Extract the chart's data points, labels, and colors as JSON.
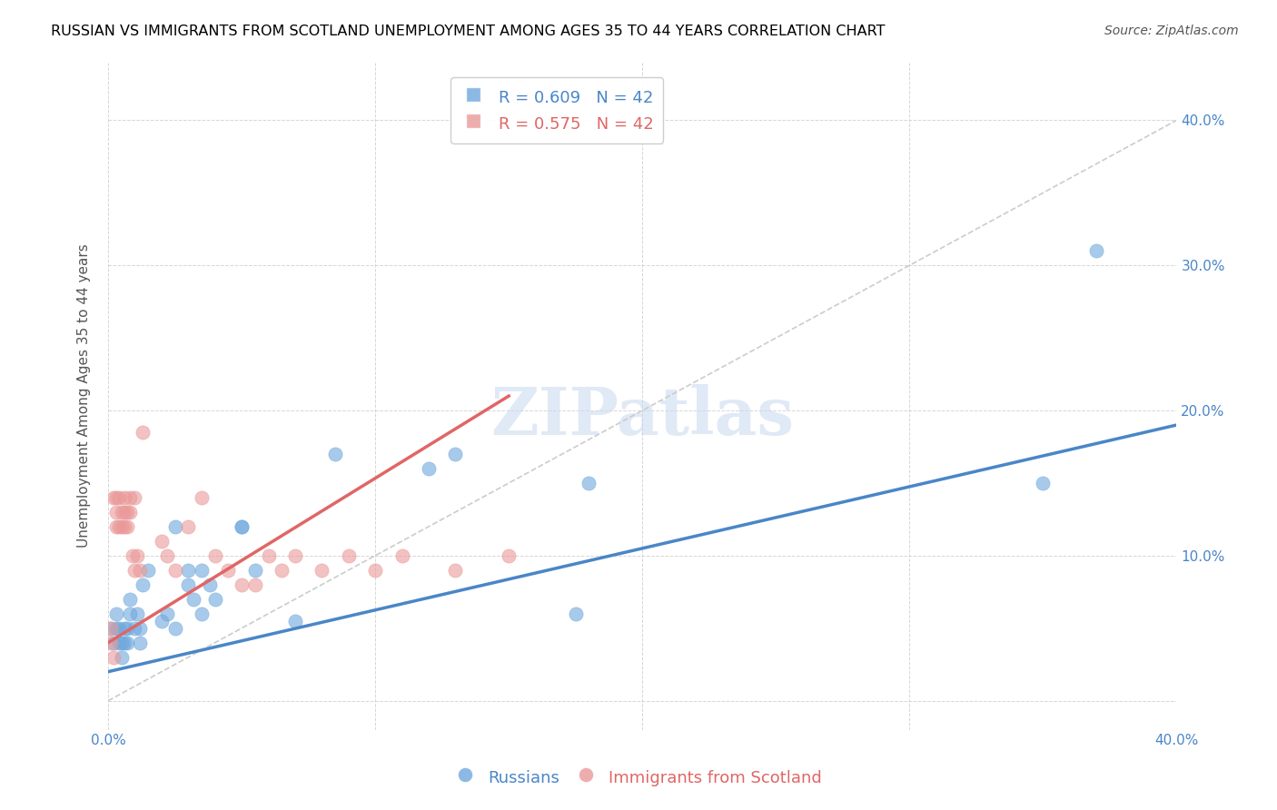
{
  "title": "RUSSIAN VS IMMIGRANTS FROM SCOTLAND UNEMPLOYMENT AMONG AGES 35 TO 44 YEARS CORRELATION CHART",
  "source": "Source: ZipAtlas.com",
  "xlabel": "",
  "ylabel": "Unemployment Among Ages 35 to 44 years",
  "xlim": [
    0.0,
    0.4
  ],
  "ylim": [
    -0.02,
    0.44
  ],
  "x_ticks": [
    0.0,
    0.05,
    0.1,
    0.15,
    0.2,
    0.25,
    0.3,
    0.35,
    0.4
  ],
  "y_ticks": [
    0.0,
    0.1,
    0.2,
    0.3,
    0.4
  ],
  "x_tick_labels": [
    "0.0%",
    "",
    "",
    "",
    "",
    "",
    "",
    "",
    "40.0%"
  ],
  "y_tick_labels": [
    "",
    "10.0%",
    "20.0%",
    "30.0%",
    "40.0%"
  ],
  "blue_color": "#6fa8dc",
  "pink_color": "#ea9999",
  "blue_line_color": "#4a86c8",
  "pink_line_color": "#e06666",
  "diagonal_color": "#cccccc",
  "legend_blue_R": "0.609",
  "legend_blue_N": "42",
  "legend_pink_R": "0.575",
  "legend_pink_N": "42",
  "legend_label_blue": "Russians",
  "legend_label_pink": "Immigrants from Scotland",
  "watermark": "ZIPatlas",
  "russians_x": [
    0.001,
    0.002,
    0.003,
    0.003,
    0.004,
    0.004,
    0.005,
    0.005,
    0.006,
    0.006,
    0.007,
    0.007,
    0.008,
    0.008,
    0.01,
    0.011,
    0.012,
    0.012,
    0.013,
    0.015,
    0.02,
    0.022,
    0.025,
    0.025,
    0.03,
    0.03,
    0.032,
    0.035,
    0.035,
    0.038,
    0.04,
    0.05,
    0.05,
    0.055,
    0.07,
    0.085,
    0.12,
    0.13,
    0.175,
    0.18,
    0.35,
    0.37
  ],
  "russians_y": [
    0.05,
    0.04,
    0.05,
    0.06,
    0.04,
    0.05,
    0.03,
    0.04,
    0.04,
    0.05,
    0.04,
    0.05,
    0.06,
    0.07,
    0.05,
    0.06,
    0.04,
    0.05,
    0.08,
    0.09,
    0.055,
    0.06,
    0.05,
    0.12,
    0.08,
    0.09,
    0.07,
    0.06,
    0.09,
    0.08,
    0.07,
    0.12,
    0.12,
    0.09,
    0.055,
    0.17,
    0.16,
    0.17,
    0.06,
    0.15,
    0.15,
    0.31
  ],
  "scotland_x": [
    0.001,
    0.001,
    0.002,
    0.002,
    0.003,
    0.003,
    0.003,
    0.004,
    0.004,
    0.005,
    0.005,
    0.006,
    0.006,
    0.006,
    0.007,
    0.007,
    0.008,
    0.008,
    0.009,
    0.01,
    0.01,
    0.011,
    0.012,
    0.013,
    0.02,
    0.022,
    0.025,
    0.03,
    0.035,
    0.04,
    0.045,
    0.05,
    0.055,
    0.06,
    0.065,
    0.07,
    0.08,
    0.09,
    0.1,
    0.11,
    0.13,
    0.15
  ],
  "scotland_y": [
    0.04,
    0.05,
    0.14,
    0.03,
    0.12,
    0.13,
    0.14,
    0.12,
    0.14,
    0.12,
    0.13,
    0.12,
    0.13,
    0.14,
    0.12,
    0.13,
    0.13,
    0.14,
    0.1,
    0.09,
    0.14,
    0.1,
    0.09,
    0.185,
    0.11,
    0.1,
    0.09,
    0.12,
    0.14,
    0.1,
    0.09,
    0.08,
    0.08,
    0.1,
    0.09,
    0.1,
    0.09,
    0.1,
    0.09,
    0.1,
    0.09,
    0.1
  ],
  "blue_line_x": [
    0.0,
    0.4
  ],
  "blue_line_y": [
    0.02,
    0.19
  ],
  "pink_line_x": [
    0.0,
    0.15
  ],
  "pink_line_y": [
    0.04,
    0.21
  ],
  "title_fontsize": 11.5,
  "axis_label_fontsize": 11,
  "tick_fontsize": 11,
  "legend_fontsize": 12,
  "source_fontsize": 10
}
